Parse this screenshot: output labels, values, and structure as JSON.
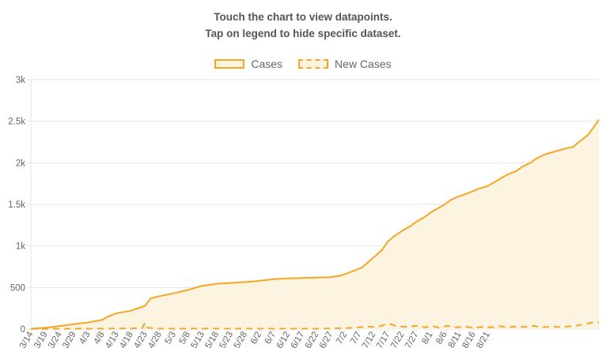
{
  "instructions": {
    "line1": "Touch the chart to view datapoints.",
    "line2": "Tap on legend to hide specific dataset."
  },
  "legend": [
    {
      "label": "Cases",
      "style": "solid"
    },
    {
      "label": "New Cases",
      "style": "dashed"
    }
  ],
  "colors": {
    "line": "#f5a623",
    "fill": "#fdf3e1",
    "grid": "#e6e6e6"
  },
  "chart_data": {
    "type": "line",
    "title": "",
    "xlabel": "",
    "ylabel": "",
    "ylim": [
      0,
      3000
    ],
    "y_ticks": [
      {
        "value": 0,
        "label": "0"
      },
      {
        "value": 500,
        "label": "500"
      },
      {
        "value": 1000,
        "label": "1k"
      },
      {
        "value": 1500,
        "label": "1.5k"
      },
      {
        "value": 2000,
        "label": "2k"
      },
      {
        "value": 2500,
        "label": "2.5k"
      },
      {
        "value": 3000,
        "label": "3k"
      }
    ],
    "x_tick_labels": [
      "3/14",
      "3/19",
      "3/24",
      "3/29",
      "4/3",
      "4/8",
      "4/13",
      "4/18",
      "4/23",
      "4/28",
      "5/3",
      "5/8",
      "5/13",
      "5/18",
      "5/23",
      "5/28",
      "6/2",
      "6/7",
      "6/12",
      "6/17",
      "6/22",
      "6/27",
      "7/2",
      "7/7",
      "7/12",
      "7/17",
      "7/22",
      "7/27",
      "8/1",
      "8/6",
      "8/11",
      "8/16",
      "8/21"
    ],
    "x_tick_step_days": 5,
    "grid": true,
    "legend_position": "top",
    "series": [
      {
        "name": "Cases",
        "style": "solid-filled",
        "points": [
          [
            0,
            5
          ],
          [
            5,
            15
          ],
          [
            10,
            35
          ],
          [
            15,
            60
          ],
          [
            20,
            80
          ],
          [
            25,
            110
          ],
          [
            27,
            150
          ],
          [
            30,
            190
          ],
          [
            35,
            220
          ],
          [
            40,
            280
          ],
          [
            42,
            370
          ],
          [
            45,
            395
          ],
          [
            50,
            430
          ],
          [
            55,
            470
          ],
          [
            60,
            520
          ],
          [
            65,
            545
          ],
          [
            70,
            555
          ],
          [
            75,
            565
          ],
          [
            80,
            580
          ],
          [
            85,
            600
          ],
          [
            90,
            610
          ],
          [
            95,
            615
          ],
          [
            100,
            620
          ],
          [
            105,
            625
          ],
          [
            108,
            640
          ],
          [
            110,
            660
          ],
          [
            113,
            700
          ],
          [
            116,
            740
          ],
          [
            118,
            800
          ],
          [
            120,
            860
          ],
          [
            123,
            950
          ],
          [
            125,
            1050
          ],
          [
            127,
            1110
          ],
          [
            130,
            1180
          ],
          [
            133,
            1240
          ],
          [
            135,
            1290
          ],
          [
            138,
            1350
          ],
          [
            140,
            1400
          ],
          [
            142,
            1440
          ],
          [
            145,
            1500
          ],
          [
            147,
            1550
          ],
          [
            150,
            1600
          ],
          [
            152,
            1620
          ],
          [
            155,
            1660
          ],
          [
            157,
            1690
          ],
          [
            160,
            1720
          ],
          [
            162,
            1760
          ],
          [
            165,
            1820
          ],
          [
            167,
            1860
          ],
          [
            170,
            1900
          ],
          [
            172,
            1950
          ],
          [
            175,
            2000
          ],
          [
            177,
            2050
          ],
          [
            180,
            2100
          ],
          [
            182,
            2120
          ],
          [
            185,
            2150
          ],
          [
            187,
            2170
          ],
          [
            190,
            2190
          ],
          [
            192,
            2250
          ],
          [
            195,
            2330
          ],
          [
            197,
            2420
          ],
          [
            199,
            2520
          ]
        ]
      },
      {
        "name": "New Cases",
        "style": "dashed",
        "points": [
          [
            0,
            2
          ],
          [
            20,
            5
          ],
          [
            35,
            8
          ],
          [
            39,
            10
          ],
          [
            40,
            75
          ],
          [
            41,
            15
          ],
          [
            45,
            5
          ],
          [
            60,
            6
          ],
          [
            80,
            5
          ],
          [
            100,
            5
          ],
          [
            110,
            10
          ],
          [
            115,
            20
          ],
          [
            118,
            30
          ],
          [
            120,
            25
          ],
          [
            123,
            40
          ],
          [
            124,
            55
          ],
          [
            126,
            60
          ],
          [
            128,
            35
          ],
          [
            132,
            25
          ],
          [
            135,
            40
          ],
          [
            138,
            20
          ],
          [
            141,
            35
          ],
          [
            143,
            15
          ],
          [
            146,
            40
          ],
          [
            149,
            20
          ],
          [
            152,
            30
          ],
          [
            155,
            15
          ],
          [
            158,
            25
          ],
          [
            161,
            20
          ],
          [
            164,
            35
          ],
          [
            167,
            20
          ],
          [
            170,
            30
          ],
          [
            173,
            25
          ],
          [
            176,
            40
          ],
          [
            179,
            20
          ],
          [
            182,
            30
          ],
          [
            185,
            25
          ],
          [
            188,
            30
          ],
          [
            191,
            40
          ],
          [
            194,
            60
          ],
          [
            196,
            75
          ],
          [
            199,
            80
          ]
        ]
      }
    ]
  }
}
